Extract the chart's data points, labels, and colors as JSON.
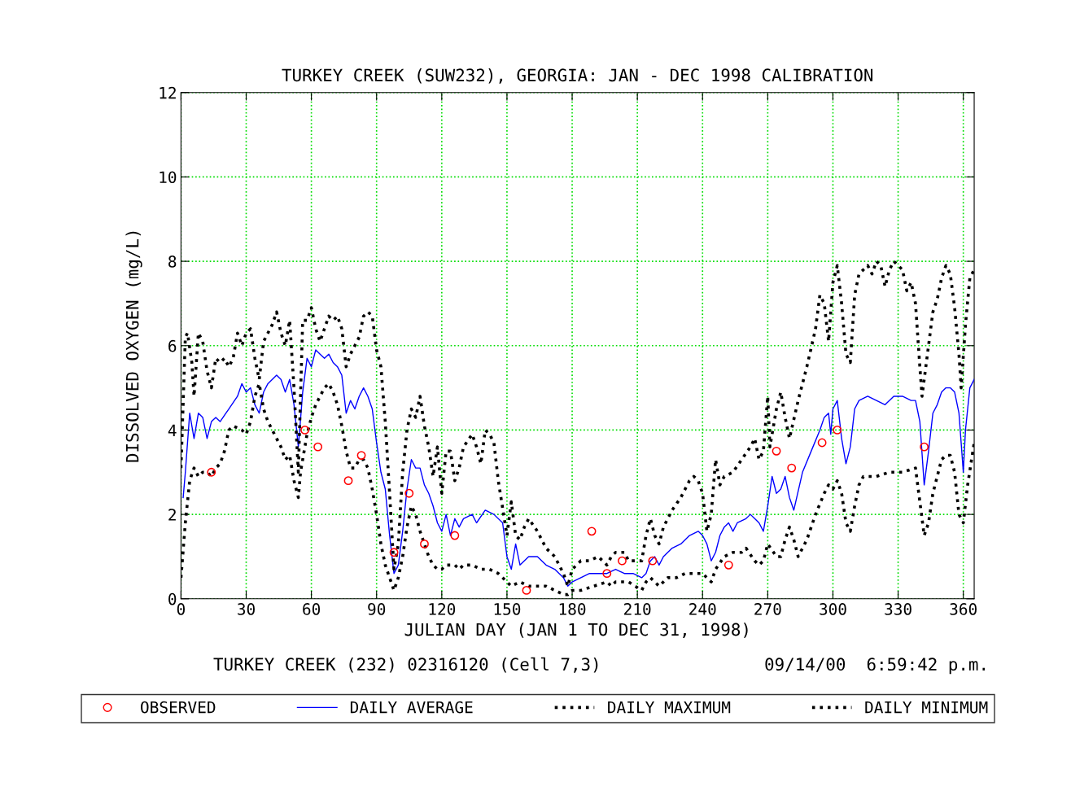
{
  "chart_data": {
    "type": "line",
    "title": "TURKEY CREEK (SUW232), GEORGIA: JAN - DEC 1998 CALIBRATION",
    "xlabel": "JULIAN DAY (JAN 1 TO DEC 31, 1998)",
    "ylabel": "DISSOLVED OXYGEN (mg/L)",
    "annotations": [
      "TURKEY CREEK (232) 02316120 (Cell 7,3)",
      "09/14/00  6:59:42 p.m."
    ],
    "xlim": [
      0,
      365
    ],
    "xticks": [
      0,
      30,
      60,
      90,
      120,
      150,
      180,
      210,
      240,
      270,
      300,
      330,
      360
    ],
    "ylim": [
      0,
      12
    ],
    "yticks": [
      0,
      2,
      4,
      6,
      8,
      10,
      12
    ],
    "grid": true,
    "legend": "bottom",
    "series": [
      {
        "name": "OBSERVED",
        "type": "scatter",
        "color": "#ff0000",
        "marker": "circle",
        "x": [
          14,
          57,
          63,
          77,
          83,
          98,
          105,
          112,
          126,
          159,
          189,
          196,
          203,
          217,
          252,
          274,
          281,
          295,
          302,
          342
        ],
        "values": [
          3.0,
          4.0,
          3.6,
          2.8,
          3.4,
          1.1,
          2.5,
          1.3,
          1.5,
          0.2,
          1.6,
          0.6,
          0.9,
          0.9,
          0.8,
          3.5,
          3.1,
          3.7,
          4.0,
          3.6
        ]
      },
      {
        "name": "DAILY AVERAGE",
        "color": "#0000ff",
        "line_style": "solid",
        "x": [
          1,
          2,
          4,
          6,
          8,
          10,
          12,
          14,
          16,
          18,
          22,
          26,
          28,
          30,
          32,
          34,
          36,
          38,
          40,
          42,
          44,
          46,
          48,
          50,
          52,
          54,
          56,
          58,
          60,
          62,
          64,
          66,
          68,
          70,
          72,
          74,
          76,
          78,
          80,
          82,
          84,
          86,
          88,
          90,
          92,
          94,
          96,
          98,
          100,
          102,
          104,
          106,
          108,
          110,
          112,
          114,
          116,
          118,
          120,
          122,
          124,
          126,
          128,
          130,
          134,
          136,
          140,
          144,
          148,
          150,
          152,
          154,
          156,
          160,
          164,
          168,
          172,
          176,
          178,
          180,
          184,
          188,
          192,
          196,
          200,
          204,
          208,
          212,
          214,
          216,
          218,
          220,
          222,
          226,
          230,
          234,
          238,
          240,
          242,
          244,
          246,
          248,
          250,
          252,
          254,
          256,
          260,
          262,
          264,
          266,
          268,
          270,
          272,
          274,
          276,
          278,
          280,
          282,
          286,
          290,
          294,
          296,
          298,
          299,
          300,
          302,
          304,
          306,
          308,
          310,
          312,
          316,
          320,
          324,
          328,
          332,
          336,
          338,
          340,
          342,
          344,
          346,
          348,
          350,
          352,
          354,
          356,
          358,
          360,
          361,
          363,
          365
        ],
        "values": [
          2.4,
          3.0,
          4.4,
          3.8,
          4.4,
          4.3,
          3.8,
          4.2,
          4.3,
          4.2,
          4.5,
          4.8,
          5.1,
          4.9,
          5.0,
          4.6,
          4.4,
          4.9,
          5.1,
          5.2,
          5.3,
          5.2,
          4.9,
          5.2,
          4.6,
          3.6,
          4.9,
          5.7,
          5.5,
          5.9,
          5.8,
          5.7,
          5.8,
          5.6,
          5.5,
          5.3,
          4.4,
          4.7,
          4.5,
          4.8,
          5.0,
          4.8,
          4.5,
          3.7,
          3.0,
          2.6,
          1.5,
          0.6,
          0.8,
          1.6,
          2.6,
          3.3,
          3.1,
          3.1,
          2.7,
          2.5,
          2.2,
          1.8,
          1.6,
          2.0,
          1.5,
          1.9,
          1.7,
          1.9,
          2.0,
          1.8,
          2.1,
          2.0,
          1.8,
          1.0,
          0.7,
          1.3,
          0.8,
          1.0,
          1.0,
          0.8,
          0.7,
          0.5,
          0.3,
          0.4,
          0.5,
          0.6,
          0.6,
          0.6,
          0.7,
          0.6,
          0.6,
          0.5,
          0.6,
          0.9,
          1.0,
          0.8,
          1.0,
          1.2,
          1.3,
          1.5,
          1.6,
          1.5,
          1.3,
          0.9,
          1.1,
          1.5,
          1.7,
          1.8,
          1.6,
          1.8,
          1.9,
          2.0,
          1.9,
          1.8,
          1.6,
          2.2,
          2.9,
          2.5,
          2.6,
          2.9,
          2.4,
          2.1,
          3.0,
          3.5,
          4.0,
          4.3,
          4.4,
          3.9,
          4.5,
          4.7,
          3.8,
          3.2,
          3.6,
          4.5,
          4.7,
          4.8,
          4.7,
          4.6,
          4.8,
          4.8,
          4.7,
          4.7,
          4.2,
          2.7,
          3.5,
          4.4,
          4.6,
          4.9,
          5.0,
          5.0,
          4.9,
          4.4,
          3.0,
          4.0,
          5.0,
          5.2
        ]
      },
      {
        "name": "DAILY MAXIMUM",
        "color": "#000000",
        "line_style": "dotted",
        "x": [
          0,
          2,
          3,
          5,
          6,
          8,
          10,
          12,
          14,
          16,
          18,
          20,
          22,
          24,
          26,
          28,
          30,
          32,
          34,
          36,
          38,
          40,
          42,
          44,
          46,
          48,
          50,
          52,
          54,
          56,
          58,
          60,
          62,
          64,
          66,
          68,
          70,
          72,
          74,
          76,
          78,
          80,
          82,
          84,
          86,
          88,
          90,
          92,
          94,
          96,
          98,
          100,
          102,
          104,
          106,
          108,
          110,
          112,
          114,
          116,
          118,
          120,
          122,
          124,
          126,
          128,
          130,
          134,
          136,
          138,
          140,
          142,
          144,
          146,
          150,
          152,
          154,
          156,
          158,
          160,
          164,
          168,
          172,
          176,
          178,
          180,
          184,
          188,
          192,
          194,
          196,
          198,
          200,
          204,
          206,
          212,
          214,
          216,
          218,
          220,
          222,
          226,
          230,
          234,
          236,
          238,
          240,
          242,
          244,
          246,
          248,
          250,
          254,
          258,
          262,
          264,
          266,
          268,
          270,
          271,
          274,
          276,
          278,
          280,
          284,
          288,
          292,
          294,
          296,
          298,
          300,
          302,
          304,
          306,
          308,
          310,
          312,
          314,
          316,
          318,
          320,
          322,
          324,
          326,
          328,
          330,
          332,
          334,
          336,
          338,
          340,
          341,
          343,
          346,
          348,
          350,
          352,
          354,
          356,
          358,
          359,
          361,
          363,
          365
        ],
        "values": [
          3.1,
          6.2,
          6.3,
          5.6,
          4.8,
          6.3,
          6.1,
          5.4,
          5.0,
          5.7,
          5.6,
          5.7,
          5.5,
          5.7,
          6.3,
          6.0,
          6.3,
          6.4,
          5.7,
          5.2,
          6.1,
          6.3,
          6.5,
          6.8,
          6.3,
          6.0,
          6.6,
          5.0,
          3.0,
          6.6,
          6.6,
          6.9,
          6.4,
          6.1,
          6.4,
          6.7,
          6.6,
          6.7,
          6.4,
          5.5,
          5.8,
          6.0,
          6.2,
          6.7,
          6.8,
          6.7,
          5.9,
          5.5,
          4.2,
          2.5,
          0.7,
          1.3,
          3.0,
          4.0,
          4.5,
          4.3,
          4.8,
          4.1,
          3.6,
          2.9,
          3.6,
          2.5,
          3.5,
          3.5,
          2.8,
          3.1,
          3.6,
          3.9,
          3.6,
          3.2,
          4.0,
          3.9,
          3.7,
          2.8,
          1.5,
          2.3,
          1.5,
          1.4,
          1.7,
          1.9,
          1.6,
          1.2,
          1.0,
          0.6,
          0.3,
          0.7,
          0.9,
          0.9,
          1.0,
          0.9,
          0.8,
          1.0,
          1.1,
          1.1,
          0.9,
          0.9,
          1.5,
          1.9,
          1.5,
          1.3,
          1.7,
          2.1,
          2.4,
          2.8,
          2.9,
          2.8,
          2.5,
          1.6,
          2.0,
          3.3,
          2.7,
          2.9,
          3.0,
          3.3,
          3.6,
          3.8,
          3.3,
          3.5,
          4.8,
          3.6,
          4.5,
          4.9,
          4.3,
          3.8,
          4.7,
          5.5,
          6.4,
          7.2,
          7.0,
          6.1,
          7.5,
          7.9,
          7.0,
          5.8,
          5.6,
          7.2,
          7.7,
          7.8,
          7.9,
          7.7,
          8.0,
          7.9,
          7.4,
          7.8,
          8.0,
          7.9,
          7.8,
          7.3,
          7.5,
          7.0,
          5.5,
          4.8,
          5.6,
          6.8,
          7.1,
          7.6,
          7.9,
          7.7,
          6.9,
          5.8,
          5.0,
          6.5,
          7.6,
          7.8
        ]
      },
      {
        "name": "DAILY MINIMUM",
        "color": "#000000",
        "line_style": "dotted",
        "x": [
          0,
          2,
          4,
          6,
          8,
          10,
          12,
          14,
          16,
          18,
          20,
          22,
          24,
          28,
          30,
          32,
          34,
          36,
          38,
          40,
          42,
          44,
          46,
          48,
          50,
          52,
          54,
          55,
          58,
          60,
          62,
          64,
          66,
          68,
          70,
          72,
          74,
          76,
          78,
          80,
          82,
          84,
          86,
          88,
          90,
          92,
          94,
          96,
          98,
          100,
          102,
          104,
          106,
          108,
          110,
          112,
          114,
          116,
          118,
          120,
          122,
          126,
          128,
          130,
          134,
          138,
          142,
          146,
          150,
          152,
          156,
          160,
          164,
          168,
          172,
          176,
          178,
          180,
          184,
          190,
          196,
          198,
          200,
          206,
          212,
          214,
          216,
          220,
          224,
          228,
          232,
          236,
          240,
          244,
          246,
          250,
          254,
          258,
          260,
          264,
          266,
          268,
          270,
          274,
          276,
          278,
          280,
          282,
          284,
          288,
          292,
          296,
          298,
          300,
          302,
          304,
          306,
          308,
          310,
          312,
          314,
          320,
          326,
          332,
          338,
          340,
          342,
          344,
          346,
          348,
          350,
          352,
          354,
          356,
          358,
          360,
          362,
          365
        ],
        "values": [
          0.5,
          1.8,
          2.8,
          3.1,
          2.9,
          3.0,
          3.0,
          2.9,
          3.1,
          3.2,
          3.5,
          4.0,
          4.1,
          4.0,
          3.9,
          4.2,
          4.8,
          5.1,
          4.5,
          4.2,
          4.0,
          3.8,
          3.6,
          3.3,
          3.4,
          2.8,
          2.4,
          3.0,
          3.9,
          4.3,
          4.6,
          4.8,
          5.0,
          5.1,
          4.9,
          4.6,
          4.1,
          3.5,
          3.1,
          3.1,
          3.3,
          3.3,
          3.1,
          2.6,
          2.0,
          1.3,
          0.8,
          0.5,
          0.2,
          0.5,
          1.0,
          1.7,
          2.2,
          2.0,
          1.6,
          1.3,
          1.0,
          0.8,
          0.7,
          0.7,
          0.8,
          0.8,
          0.7,
          0.8,
          0.8,
          0.7,
          0.7,
          0.6,
          0.4,
          0.3,
          0.4,
          0.3,
          0.3,
          0.3,
          0.2,
          0.1,
          0.1,
          0.2,
          0.2,
          0.3,
          0.4,
          0.3,
          0.4,
          0.4,
          0.2,
          0.4,
          0.5,
          0.3,
          0.5,
          0.5,
          0.6,
          0.6,
          0.6,
          0.4,
          0.7,
          1.0,
          1.1,
          1.1,
          1.2,
          0.9,
          0.8,
          0.9,
          1.3,
          1.0,
          1.0,
          1.4,
          1.7,
          1.4,
          1.0,
          1.4,
          2.0,
          2.5,
          2.7,
          2.6,
          2.8,
          2.5,
          1.8,
          1.6,
          2.2,
          2.7,
          2.9,
          2.9,
          3.0,
          3.0,
          3.1,
          2.3,
          1.5,
          1.8,
          2.5,
          2.9,
          3.3,
          3.4,
          3.4,
          3.0,
          2.0,
          1.8,
          2.7,
          3.7
        ]
      }
    ]
  }
}
